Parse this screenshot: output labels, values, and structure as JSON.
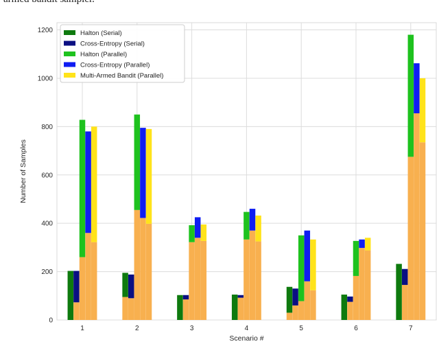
{
  "caption_fragment": "-armed bandit sampler.",
  "chart_data": {
    "type": "bar",
    "categories": [
      "1",
      "2",
      "3",
      "4",
      "5",
      "6",
      "7"
    ],
    "xlabel": "Scenario #",
    "ylabel": "Number of Samples",
    "ylim": [
      0,
      1230
    ],
    "yticks": [
      0,
      200,
      400,
      600,
      800,
      1000,
      1200
    ],
    "grid": true,
    "legend_position": "top-left",
    "base_color": "#f8b04f",
    "series": [
      {
        "name": "Halton (Serial)",
        "color": "#0e7a0e",
        "base": [
          0,
          95,
          0,
          0,
          30,
          0,
          0
        ],
        "top": [
          203,
          195,
          103,
          105,
          137,
          105,
          232
        ]
      },
      {
        "name": "Cross-Entropy (Serial)",
        "color": "#0a0f82",
        "base": [
          73,
          90,
          85,
          92,
          60,
          75,
          145
        ],
        "top": [
          203,
          188,
          103,
          103,
          130,
          97,
          211
        ]
      },
      {
        "name": "Halton (Parallel)",
        "color": "#1ec21e",
        "base": [
          260,
          455,
          322,
          333,
          78,
          182,
          675
        ],
        "top": [
          828,
          850,
          392,
          447,
          350,
          327,
          1180
        ]
      },
      {
        "name": "Cross-Entropy (Parallel)",
        "color": "#0f1df2",
        "base": [
          360,
          422,
          340,
          370,
          160,
          298,
          855
        ],
        "top": [
          780,
          795,
          425,
          460,
          370,
          333,
          1062
        ]
      },
      {
        "name": "Multi-Armed Bandit (Parallel)",
        "color": "#ffe31a",
        "base": [
          322,
          398,
          327,
          325,
          123,
          288,
          735
        ],
        "top": [
          800,
          790,
          395,
          432,
          333,
          340,
          1000
        ]
      }
    ]
  }
}
